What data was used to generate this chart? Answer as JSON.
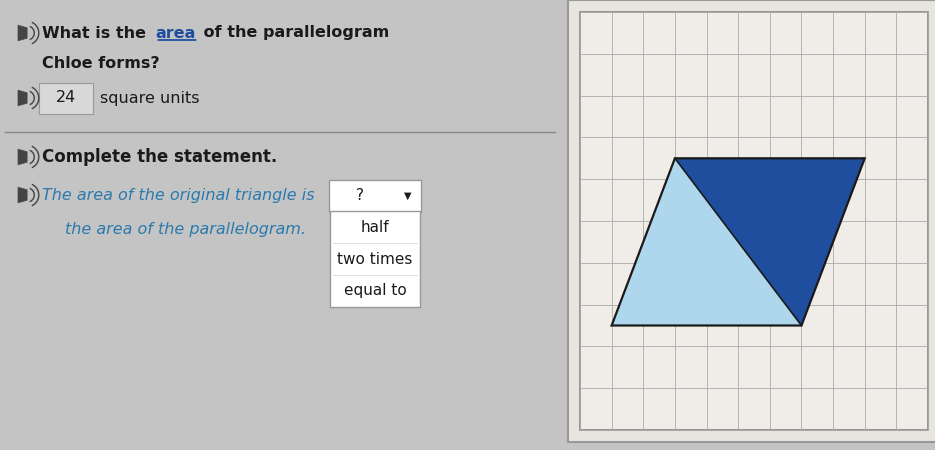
{
  "bg_color": "#c4c4c4",
  "title_bold1": "What is the ",
  "title_underline": "area",
  "title_bold2": " of the parallelogram",
  "title_line2": "Chloe forms?",
  "answer_value": "24",
  "answer_suffix": "square units",
  "section2_title": "Complete the statement.",
  "statement_part1": "The area of the original triangle is",
  "statement_part2": "the area of the parallelogram.",
  "dropdown_placeholder": "?",
  "dropdown_options": [
    "half",
    "two times",
    "equal to"
  ],
  "grid_color": "#aaaaaa",
  "grid_bg": "#f0ede8",
  "grid_border": "#888888",
  "parallelogram_dark_color": "#1f4e9e",
  "parallelogram_light_color": "#aed6ec",
  "shape_outline_color": "#1a1a1a",
  "text_dark": "#1a1a1a",
  "text_blue": "#1f4e9e",
  "text_teal": "#2a7aad",
  "speaker_color": "#555555",
  "answer_box_bg": "#d8d8d8",
  "dropdown_bg": "#ffffff",
  "dropdown_border": "#999999",
  "divider_color": "#888888",
  "n_cols": 11,
  "n_rows": 10,
  "apex_col": 3.0,
  "apex_row": 6.5,
  "tr_col": 9.0,
  "tr_row": 6.5,
  "br_col": 7.0,
  "br_row": 2.5,
  "bl_col": 1.0,
  "bl_row": 2.5
}
